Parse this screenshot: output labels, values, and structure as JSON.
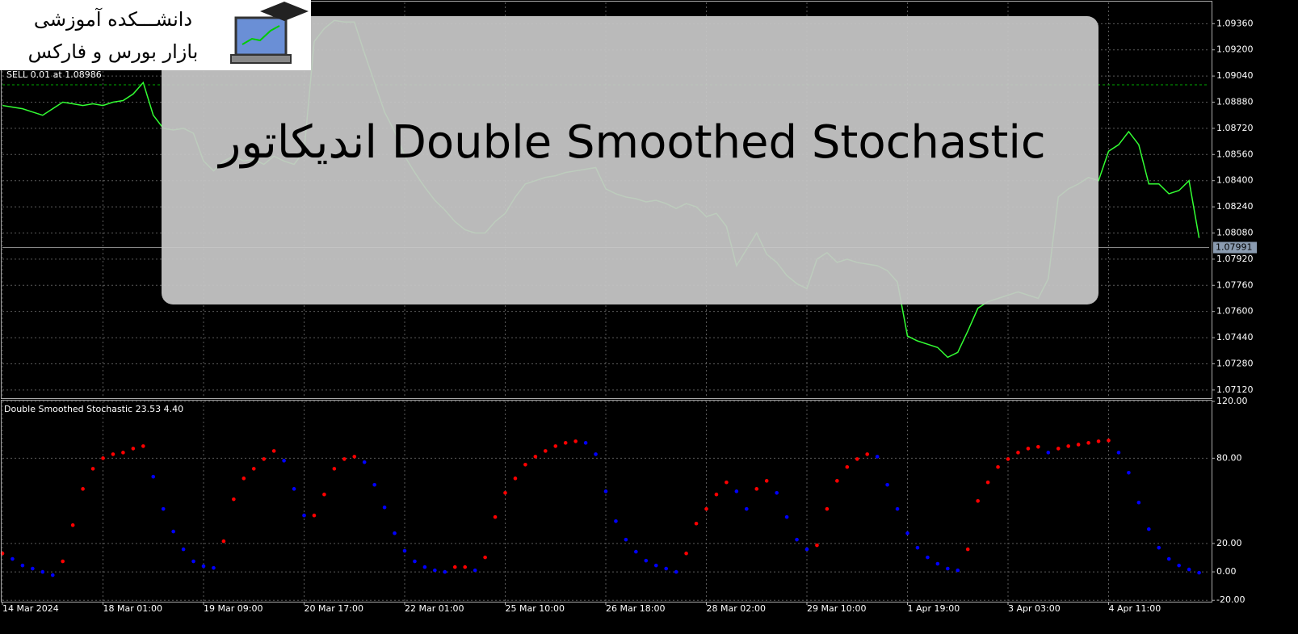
{
  "logo": {
    "line1": "دانشـــکده آموزشی",
    "line2": "بازار بورس و فارکس"
  },
  "banner": {
    "title": "اندیکاتور Double Smoothed Stochastic"
  },
  "chart_data": [
    {
      "type": "line",
      "color": "#33ff33",
      "grid": true,
      "annotation": "SELL 0.01 at 1.08986",
      "sell_level": 1.08986,
      "last_price": {
        "value": 1.07991,
        "label": "1.07991"
      },
      "xlim": [
        0,
        120
      ],
      "ylim": [
        1.0707,
        1.0949
      ],
      "yticks": [
        {
          "value": 1.0936,
          "label": "1.09360"
        },
        {
          "value": 1.092,
          "label": "1.09200"
        },
        {
          "value": 1.0904,
          "label": "1.09040"
        },
        {
          "value": 1.0888,
          "label": "1.08880"
        },
        {
          "value": 1.0872,
          "label": "1.08720"
        },
        {
          "value": 1.0856,
          "label": "1.08560"
        },
        {
          "value": 1.084,
          "label": "1.08400"
        },
        {
          "value": 1.0824,
          "label": "1.08240"
        },
        {
          "value": 1.0808,
          "label": "1.08080"
        },
        {
          "value": 1.0792,
          "label": "1.07920"
        },
        {
          "value": 1.0776,
          "label": "1.07760"
        },
        {
          "value": 1.076,
          "label": "1.07600"
        },
        {
          "value": 1.0744,
          "label": "1.07440"
        },
        {
          "value": 1.0728,
          "label": "1.07280"
        },
        {
          "value": 1.0712,
          "label": "1.07120"
        }
      ],
      "values": [
        1.0886,
        1.0885,
        1.0884,
        1.0882,
        1.088,
        1.0884,
        1.0888,
        1.0887,
        1.0886,
        1.0887,
        1.0886,
        1.0888,
        1.0889,
        1.0893,
        1.09,
        1.088,
        1.0872,
        1.0871,
        1.0872,
        1.0869,
        1.0852,
        1.0846,
        1.0852,
        1.0855,
        1.0852,
        1.0853,
        1.085,
        1.0855,
        1.0852,
        1.085,
        1.0858,
        1.0925,
        1.0933,
        1.0938,
        1.0937,
        1.0937,
        1.0918,
        1.09,
        1.0882,
        1.087,
        1.0855,
        1.0845,
        1.0836,
        1.0828,
        1.0822,
        1.0815,
        1.081,
        1.0808,
        1.0808,
        1.0815,
        1.082,
        1.083,
        1.0838,
        1.084,
        1.0842,
        1.0843,
        1.0845,
        1.0846,
        1.0847,
        1.0848,
        1.0835,
        1.0832,
        1.083,
        1.0829,
        1.0827,
        1.0828,
        1.0826,
        1.0823,
        1.0826,
        1.0824,
        1.0818,
        1.082,
        1.0812,
        1.0788,
        1.0798,
        1.0808,
        1.0795,
        1.079,
        1.0782,
        1.0777,
        1.0774,
        1.0792,
        1.0796,
        1.079,
        1.0792,
        1.079,
        1.0789,
        1.0788,
        1.0785,
        1.0778,
        1.0745,
        1.0742,
        1.074,
        1.0738,
        1.0732,
        1.0735,
        1.0748,
        1.0762,
        1.0766,
        1.0768,
        1.077,
        1.0772,
        1.077,
        1.0768,
        1.078,
        1.083,
        1.0835,
        1.0838,
        1.0842,
        1.084,
        1.0858,
        1.0862,
        1.087,
        1.0862,
        1.0838,
        1.0838,
        1.0832,
        1.0834,
        1.084,
        1.0805
      ]
    },
    {
      "type": "dots",
      "title": "Double Smoothed Stochastic 23.53 4.40",
      "grid": true,
      "rising_color": "#ff0000",
      "falling_color": "#0000ff",
      "xlim": [
        0,
        120
      ],
      "ylim": [
        -21,
        120
      ],
      "yticks": [
        {
          "value": 120,
          "label": "120.00"
        },
        {
          "value": 80,
          "label": "80.00"
        },
        {
          "value": 20,
          "label": "20.00"
        },
        {
          "value": 0,
          "label": "0.00"
        },
        {
          "value": -20,
          "label": "-20.00"
        }
      ],
      "xticks": [
        {
          "value": 0,
          "label": "14 Mar 2024"
        },
        {
          "value": 10,
          "label": "18 Mar 01:00"
        },
        {
          "value": 20,
          "label": "19 Mar 09:00"
        },
        {
          "value": 30,
          "label": "20 Mar 17:00"
        },
        {
          "value": 40,
          "label": "22 Mar 01:00"
        },
        {
          "value": 50,
          "label": "25 Mar 10:00"
        },
        {
          "value": 60,
          "label": "26 Mar 18:00"
        },
        {
          "value": 70,
          "label": "28 Mar 02:00"
        },
        {
          "value": 80,
          "label": "29 Mar 10:00"
        },
        {
          "value": 90,
          "label": "1 Apr 19:00"
        },
        {
          "value": 100,
          "label": "3 Apr 03:00"
        },
        {
          "value": 110,
          "label": "4 Apr 11:00"
        }
      ],
      "values": [
        13,
        9.1,
        4.5,
        2.3,
        0,
        -2.3,
        7.4,
        32.9,
        58.4,
        72.6,
        80,
        82.8,
        84,
        86.8,
        88.5,
        67,
        44.3,
        28.4,
        15.9,
        7.4,
        4,
        2.8,
        21.6,
        51.1,
        65.8,
        72.6,
        79.4,
        85.1,
        78.3,
        58.4,
        39.7,
        39.7,
        54.5,
        72.6,
        79.4,
        81.1,
        77.2,
        61.3,
        45.4,
        27.2,
        14.8,
        7.4,
        3.4,
        1.1,
        0,
        3.4,
        3.4,
        1.1,
        10.2,
        38.6,
        55.6,
        65.8,
        75.5,
        81.1,
        85.1,
        88.5,
        90.8,
        91.9,
        90.8,
        82.8,
        56.7,
        35.7,
        22.7,
        14.2,
        7.9,
        4.5,
        2.3,
        0,
        13,
        34,
        44.3,
        54.5,
        63,
        56.7,
        44.3,
        58.4,
        64.1,
        55.6,
        38.6,
        22.7,
        15.9,
        18.7,
        44.3,
        64.1,
        73.8,
        79.4,
        82.8,
        81.1,
        61.3,
        44.3,
        27.2,
        17,
        10.2,
        5.7,
        2.3,
        1.1,
        15.9,
        49.9,
        63,
        73.8,
        79.4,
        84,
        86.8,
        88,
        84,
        86.8,
        88.5,
        89.6,
        90.8,
        91.9,
        92.5,
        84,
        69.8,
        48.8,
        30.1,
        17,
        9.1,
        4.5,
        1.7,
        -0.6
      ]
    }
  ]
}
